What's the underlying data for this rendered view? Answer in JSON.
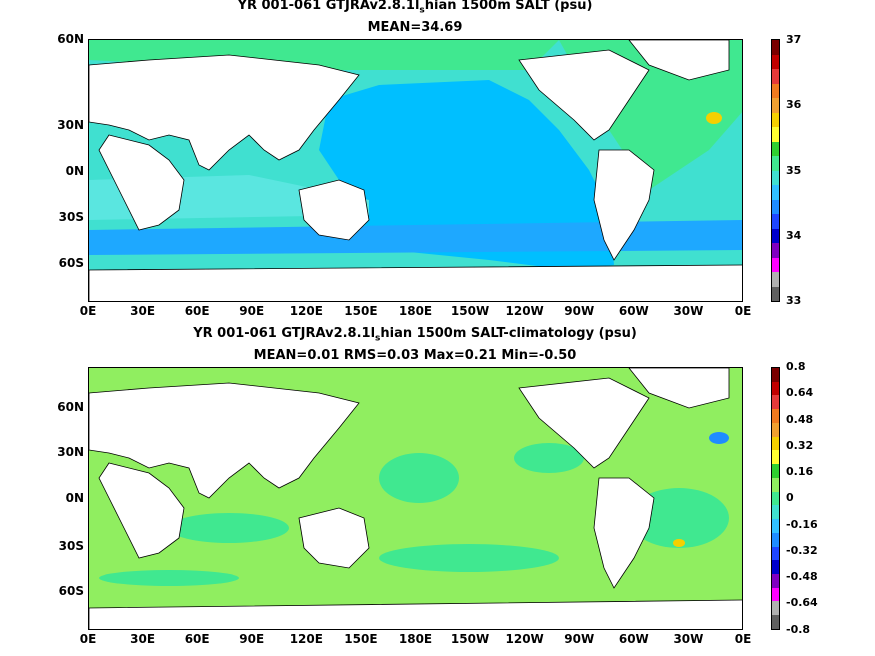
{
  "panel1": {
    "title_pre": "YR 001-061 GTJRAv2.8.1l",
    "title_sub": "s",
    "title_post": "hian 1500m SALT (psu)",
    "stats": "MEAN=34.69",
    "colorbar": {
      "ticks": [
        "37",
        "36",
        "35",
        "34",
        "33"
      ],
      "colors": [
        "#7a0000",
        "#c00000",
        "#e53a3a",
        "#f07a1f",
        "#f0a030",
        "#f5d000",
        "#ffff30",
        "#30d030",
        "#40e890",
        "#40e0d0",
        "#30c0ff",
        "#1e8cff",
        "#1e46ff",
        "#0000cc",
        "#8000c0",
        "#ff00ff",
        "#b0b0b0",
        "#606060"
      ]
    }
  },
  "panel2": {
    "title_pre": "YR 001-061 GTJRAv2.8.1l",
    "title_sub": "s",
    "title_post": "hian 1500m SALT-climatology (psu)",
    "stats": "MEAN=0.01   RMS=0.03   Max=0.21   Min=-0.50",
    "colorbar": {
      "ticks": [
        "0.8",
        "0.64",
        "0.48",
        "0.32",
        "0.16",
        "0",
        "-0.16",
        "-0.32",
        "-0.48",
        "-0.64",
        "-0.8"
      ],
      "colors": [
        "#7a0000",
        "#c00000",
        "#e53a3a",
        "#f07a1f",
        "#f0a030",
        "#f5d000",
        "#ffff30",
        "#30d030",
        "#90ee60",
        "#40e890",
        "#40e0d0",
        "#30c0ff",
        "#1e8cff",
        "#1e46ff",
        "#0000cc",
        "#8000c0",
        "#ff00ff",
        "#b0b0b0",
        "#606060"
      ]
    }
  },
  "axes": {
    "y_ticks": [
      "60N",
      "30N",
      "0N",
      "30S",
      "60S"
    ],
    "x_ticks": [
      "0E",
      "30E",
      "60E",
      "90E",
      "120E",
      "150E",
      "180E",
      "150W",
      "120W",
      "90W",
      "60W",
      "30W",
      "0E"
    ]
  },
  "colors": {
    "land": "#ffffff",
    "p1_base": "#40e0d0",
    "p1_pacific": "#00bfff",
    "p1_atlantic": "#40e890",
    "p1_southern": "#1ea8ff",
    "p2_base": "#90ee60",
    "p2_teal": "#40e890"
  }
}
